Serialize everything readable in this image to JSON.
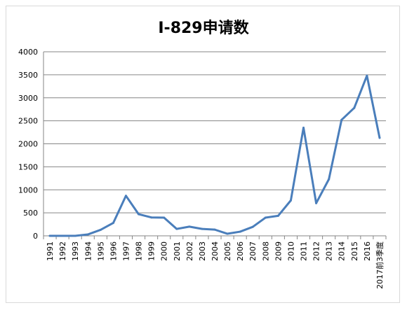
{
  "chart_data": {
    "type": "line",
    "title": "I-829申请数",
    "xlabel": "",
    "ylabel": "",
    "categories": [
      "1991",
      "1992",
      "1993",
      "1994",
      "1995",
      "1996",
      "1997",
      "1998",
      "1999",
      "2000",
      "2001",
      "2002",
      "2003",
      "2004",
      "2005",
      "2006",
      "2007",
      "2008",
      "2009",
      "2010",
      "2011",
      "2012",
      "2013",
      "2014",
      "2015",
      "2016",
      "2017前3季度"
    ],
    "series": [
      {
        "values": [
          0,
          0,
          0,
          30,
          130,
          280,
          870,
          470,
          400,
          395,
          150,
          200,
          150,
          135,
          45,
          90,
          195,
          395,
          435,
          770,
          2350,
          710,
          1230,
          2520,
          2780,
          3480,
          2130
        ]
      }
    ],
    "ylim": [
      0,
      4000
    ],
    "yticks": [
      0,
      500,
      1000,
      1500,
      2000,
      2500,
      3000,
      3500,
      4000
    ],
    "grid": true,
    "legend": "none",
    "line_color": "#4a7ebb"
  }
}
